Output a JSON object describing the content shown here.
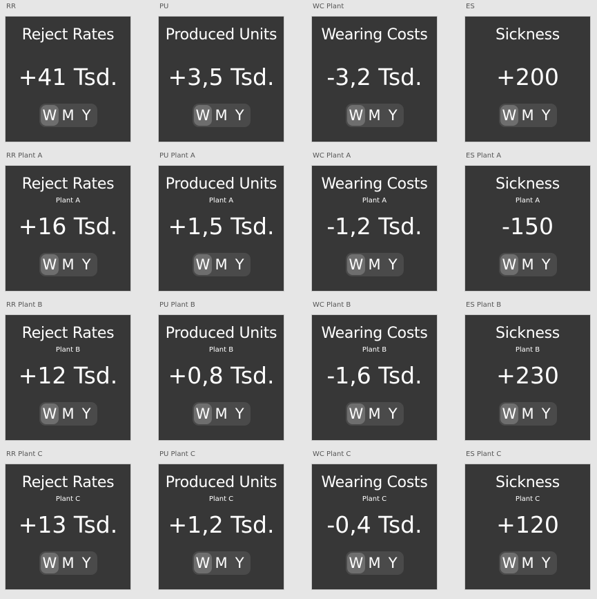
{
  "toggle_options": [
    "W",
    "M",
    "Y"
  ],
  "active_option": "W",
  "colors": {
    "page_background": "#e6e6e6",
    "card_background": "#373737",
    "toggle_background": "#4a4a4a",
    "toggle_active": "#6e6e6e",
    "text": "#ffffff",
    "label_text": "#555555"
  },
  "rows": [
    [
      {
        "label": "RR",
        "title": "Reject Rates",
        "subtitle": "",
        "value": "+41 Tsd."
      },
      {
        "label": "PU",
        "title": "Produced Units",
        "subtitle": "",
        "value": "+3,5 Tsd."
      },
      {
        "label": "WC Plant",
        "title": "Wearing Costs",
        "subtitle": "",
        "value": "-3,2 Tsd."
      },
      {
        "label": "ES",
        "title": "Sickness",
        "subtitle": "",
        "value": "+200"
      }
    ],
    [
      {
        "label": "RR Plant A",
        "title": "Reject Rates",
        "subtitle": "Plant A",
        "value": "+16 Tsd."
      },
      {
        "label": "PU Plant A",
        "title": "Produced Units",
        "subtitle": "Plant A",
        "value": "+1,5 Tsd."
      },
      {
        "label": "WC Plant A",
        "title": "Wearing Costs",
        "subtitle": "Plant A",
        "value": "-1,2 Tsd."
      },
      {
        "label": "ES Plant A",
        "title": "Sickness",
        "subtitle": "Plant A",
        "value": "-150"
      }
    ],
    [
      {
        "label": "RR Plant B",
        "title": "Reject Rates",
        "subtitle": "Plant B",
        "value": "+12 Tsd."
      },
      {
        "label": "PU Plant B",
        "title": "Produced Units",
        "subtitle": "Plant B",
        "value": "+0,8 Tsd."
      },
      {
        "label": "WC Plant B",
        "title": "Wearing Costs",
        "subtitle": "Plant B",
        "value": "-1,6 Tsd."
      },
      {
        "label": "ES Plant B",
        "title": "Sickness",
        "subtitle": "Plant B",
        "value": "+230"
      }
    ],
    [
      {
        "label": "RR Plant C",
        "title": "Reject Rates",
        "subtitle": "Plant C",
        "value": "+13 Tsd."
      },
      {
        "label": "PU Plant C",
        "title": "Produced Units",
        "subtitle": "Plant C",
        "value": "+1,2 Tsd."
      },
      {
        "label": "WC Plant C",
        "title": "Wearing Costs",
        "subtitle": "Plant C",
        "value": "-0,4 Tsd."
      },
      {
        "label": "ES Plant C",
        "title": "Sickness",
        "subtitle": "Plant C",
        "value": "+120"
      }
    ]
  ]
}
